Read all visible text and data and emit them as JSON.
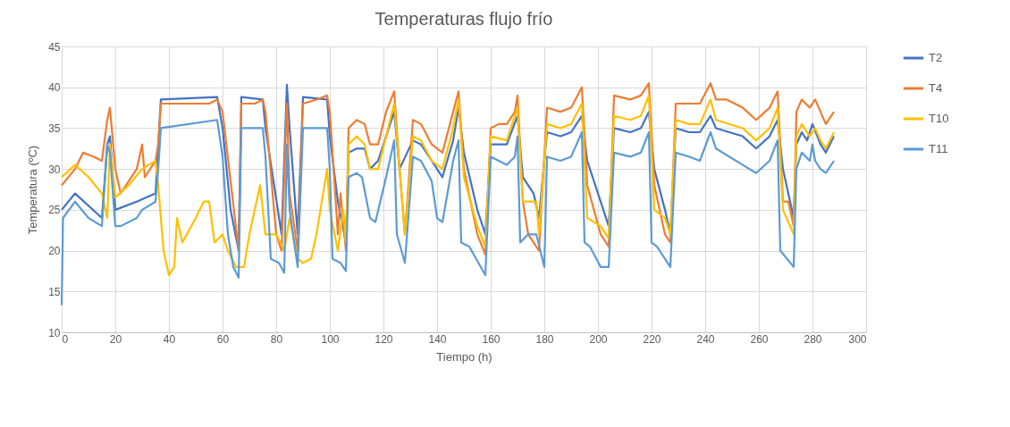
{
  "chart_data": {
    "type": "line",
    "title": "Temperaturas flujo frío",
    "xlabel": "Tiempo (h)",
    "ylabel": "Temperatura (ºC)",
    "xlim": [
      0,
      300
    ],
    "xticks": [
      0,
      20,
      40,
      60,
      80,
      100,
      120,
      140,
      160,
      180,
      200,
      220,
      240,
      260,
      280,
      300
    ],
    "ylim": [
      10,
      45
    ],
    "yticks": [
      10,
      15,
      20,
      25,
      30,
      35,
      40,
      45
    ],
    "grid": true,
    "legend": "right",
    "marker": "none",
    "line_style": "solid",
    "series": [
      {
        "name": "T2",
        "color": "#4472c4",
        "x": [
          0,
          5,
          15,
          17,
          18,
          20,
          28,
          35,
          37,
          58,
          60,
          63,
          66,
          67,
          75,
          76,
          82,
          84,
          85,
          88,
          90,
          99,
          100,
          103,
          106,
          107,
          110,
          113,
          115,
          118,
          121,
          124,
          126,
          131,
          134,
          138,
          142,
          146,
          148,
          150,
          155,
          158,
          160,
          166,
          170,
          172,
          176,
          178,
          181,
          186,
          190,
          194,
          196,
          201,
          204,
          206,
          212,
          216,
          219,
          221,
          225,
          227,
          229,
          234,
          238,
          242,
          244,
          254,
          259,
          264,
          267,
          269,
          273,
          274,
          276,
          278,
          280,
          283,
          285,
          288
        ],
        "values": [
          25,
          27,
          24,
          33,
          34,
          25,
          26,
          27,
          38.5,
          38.8,
          35,
          25,
          20,
          38.8,
          38.5,
          35,
          22,
          40.3,
          35,
          22,
          38.8,
          38.5,
          34,
          26,
          21,
          32,
          32.5,
          32.5,
          30,
          31,
          34,
          37,
          30,
          33.5,
          33,
          31,
          29,
          33.5,
          37.5,
          32,
          25,
          22,
          33,
          33,
          36.5,
          29,
          27,
          24,
          34.5,
          34,
          34.5,
          36.5,
          31,
          26,
          23,
          35,
          34.5,
          35,
          37,
          30,
          25,
          22,
          35,
          34.5,
          34.5,
          36.5,
          35,
          34,
          32.5,
          34,
          36,
          30,
          24,
          33,
          34.5,
          33.5,
          35.5,
          33,
          32,
          34
        ]
      },
      {
        "name": "T4",
        "color": "#ed7d31",
        "x": [
          0,
          5,
          8,
          12,
          15,
          17,
          18,
          20,
          22,
          28,
          30,
          31,
          35,
          36,
          37,
          45,
          55,
          58,
          60,
          66,
          67,
          72,
          75,
          76,
          80,
          82,
          84,
          85,
          88,
          90,
          95,
          99,
          100,
          103,
          104,
          106,
          107,
          110,
          113,
          115,
          118,
          121,
          124,
          126,
          128,
          131,
          134,
          138,
          142,
          146,
          148,
          150,
          155,
          158,
          160,
          163,
          166,
          169,
          170,
          172,
          174,
          178,
          181,
          186,
          190,
          194,
          196,
          201,
          204,
          206,
          212,
          216,
          219,
          221,
          225,
          227,
          229,
          234,
          238,
          242,
          244,
          248,
          254,
          259,
          264,
          267,
          269,
          271,
          273,
          274,
          276,
          279,
          281,
          283,
          285,
          288
        ],
        "values": [
          28,
          30,
          32,
          31.5,
          31,
          36,
          37.5,
          30,
          27,
          30,
          33,
          29,
          31,
          33,
          38,
          38,
          38,
          38.5,
          37,
          20,
          38,
          38,
          38.5,
          37,
          22,
          20,
          38,
          27,
          20,
          38,
          38.5,
          39,
          37,
          22,
          27,
          20,
          35,
          36,
          35.5,
          33,
          33,
          37,
          39.5,
          30,
          22,
          36,
          35.5,
          33,
          32,
          37,
          39.5,
          30,
          22,
          19.5,
          35,
          35.5,
          35.5,
          37,
          39,
          26,
          22,
          20,
          37.5,
          37,
          37.5,
          40,
          28,
          22,
          20.5,
          39,
          38.5,
          39,
          40.5,
          28,
          22,
          21,
          38,
          38,
          38,
          40.5,
          38.5,
          38.5,
          37.5,
          36,
          37.5,
          39.5,
          26,
          26,
          23,
          37,
          38.5,
          37.5,
          38.5,
          37,
          35.5,
          37
        ]
      },
      {
        "name": "T10",
        "color": "#ffc000",
        "x": [
          0,
          5,
          10,
          15,
          17,
          18,
          20,
          25,
          30,
          35,
          36,
          38,
          40,
          42,
          43,
          45,
          50,
          53,
          55,
          57,
          60,
          62,
          65,
          68,
          70,
          74,
          76,
          80,
          83,
          85,
          88,
          90,
          93,
          95,
          99,
          100,
          103,
          105,
          106,
          107,
          110,
          113,
          115,
          118,
          121,
          124,
          126,
          128,
          131,
          134,
          138,
          142,
          146,
          148,
          150,
          155,
          158,
          160,
          166,
          170,
          172,
          174,
          177,
          178,
          181,
          186,
          190,
          194,
          196,
          201,
          204,
          206,
          212,
          216,
          219,
          221,
          225,
          227,
          229,
          234,
          238,
          242,
          244,
          254,
          259,
          264,
          267,
          269,
          273,
          274,
          276,
          279,
          281,
          283,
          285,
          288
        ],
        "values": [
          29,
          30.5,
          29,
          27,
          24,
          33,
          26.5,
          28,
          30,
          31,
          28,
          20,
          17,
          18,
          24,
          21,
          24,
          26,
          26,
          21,
          22,
          20,
          18,
          18,
          22,
          28,
          22,
          22,
          20,
          24,
          19,
          18.5,
          19,
          22,
          30,
          25,
          20,
          25,
          21,
          33,
          34,
          33,
          30,
          30,
          34,
          38,
          30,
          22,
          34,
          33.5,
          31,
          30,
          35,
          38.5,
          29,
          23,
          20.5,
          34,
          33.5,
          37.5,
          26,
          26,
          26,
          22,
          35.5,
          35,
          35.5,
          38,
          24,
          23,
          21.5,
          36.5,
          36,
          36.5,
          39,
          25,
          24,
          22,
          36,
          35.5,
          35.5,
          38.5,
          36,
          35,
          33.5,
          35,
          37.5,
          25,
          22,
          34,
          35.5,
          34,
          35,
          33.5,
          32.5,
          34.5
        ]
      },
      {
        "name": "T11",
        "color": "#5b9bd5",
        "x": [
          0,
          0.5,
          5,
          10,
          15,
          17,
          18,
          20,
          22,
          28,
          30,
          35,
          36,
          37,
          58,
          60,
          62,
          64,
          66,
          67,
          75,
          76,
          78,
          81,
          83,
          84,
          85,
          88,
          90,
          99,
          100,
          101,
          104,
          106,
          107,
          110,
          112,
          115,
          117,
          121,
          124,
          125,
          128,
          131,
          134,
          138,
          140,
          142,
          146,
          148,
          149,
          152,
          158,
          160,
          166,
          169,
          170,
          171,
          174,
          177,
          180,
          181,
          186,
          190,
          194,
          195,
          197,
          201,
          204,
          206,
          212,
          216,
          219,
          220,
          222,
          227,
          229,
          234,
          238,
          242,
          244,
          254,
          259,
          264,
          267,
          268,
          273,
          274,
          276,
          279,
          280,
          281,
          283,
          285,
          288
        ],
        "values": [
          13.3,
          24,
          26,
          24,
          23,
          33,
          32,
          23,
          23,
          24,
          25,
          26,
          30,
          35,
          36,
          31.5,
          22,
          18,
          16.7,
          35,
          35,
          31.5,
          19,
          18.5,
          17.3,
          33,
          25,
          18,
          35,
          35,
          30,
          19,
          18.5,
          17.5,
          29,
          29.5,
          29,
          24,
          23.5,
          29,
          33.5,
          22,
          18.5,
          31.5,
          31,
          28.5,
          24,
          23.5,
          31,
          33.5,
          21,
          20.5,
          17,
          31.5,
          30.5,
          31.5,
          34,
          21,
          22,
          22,
          18,
          31.5,
          31,
          31.5,
          34.5,
          21,
          20.5,
          18,
          18,
          32,
          31.5,
          32,
          34.5,
          21,
          20.5,
          18,
          32,
          31.5,
          31,
          34.5,
          32.5,
          30.5,
          29.5,
          31,
          33.5,
          20,
          18,
          30,
          32,
          31,
          33,
          31,
          30,
          29.5,
          31
        ]
      }
    ]
  }
}
